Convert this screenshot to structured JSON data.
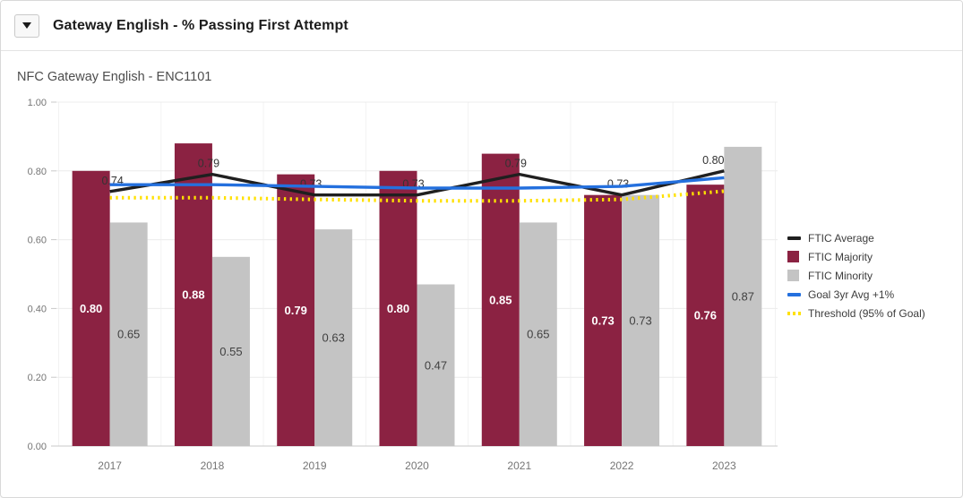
{
  "header": {
    "title": "Gateway English - % Passing First Attempt"
  },
  "chart_data": {
    "type": "bar",
    "title": "NFC Gateway English - ENC1101",
    "categories": [
      "2017",
      "2018",
      "2019",
      "2020",
      "2021",
      "2022",
      "2023"
    ],
    "series": [
      {
        "name": "FTIC Majority",
        "type": "bar",
        "color": "#8B2242",
        "label_color": "#ffffff",
        "label_bold": true,
        "values": [
          0.8,
          0.88,
          0.79,
          0.8,
          0.85,
          0.73,
          0.76
        ]
      },
      {
        "name": "FTIC Minority",
        "type": "bar",
        "color": "#C4C4C4",
        "label_color": "#404040",
        "label_bold": false,
        "values": [
          0.65,
          0.55,
          0.63,
          0.47,
          0.65,
          0.73,
          0.87
        ]
      },
      {
        "name": "FTIC Average",
        "type": "line",
        "style": "solid",
        "color": "#1F1F1F",
        "show_labels": true,
        "values": [
          0.74,
          0.79,
          0.73,
          0.73,
          0.79,
          0.73,
          0.8
        ]
      },
      {
        "name": "Goal 3yr Avg +1%",
        "type": "line",
        "style": "solid",
        "color": "#2470DE",
        "show_labels": false,
        "values": [
          0.76,
          0.76,
          0.755,
          0.75,
          0.75,
          0.755,
          0.78
        ]
      },
      {
        "name": "Threshold (95% of Goal)",
        "type": "line",
        "style": "dotted",
        "color": "#FFE100",
        "show_labels": false,
        "values": [
          0.722,
          0.722,
          0.717,
          0.713,
          0.713,
          0.717,
          0.741
        ]
      }
    ],
    "legend": [
      "FTIC Average",
      "FTIC Majority",
      "FTIC Minority",
      "Goal 3yr Avg +1%",
      "Threshold (95% of Goal)"
    ],
    "legend_position": "right",
    "ylim": [
      0,
      1
    ],
    "yticks": [
      0.0,
      0.2,
      0.4,
      0.6,
      0.8,
      1.0
    ],
    "grid": true,
    "value_format": "0.00",
    "colors": {
      "grid_line": "#ececec",
      "grid_separator": "#f2f2f2",
      "axis_line": "#c9c9c9",
      "tick_label": "#757575",
      "line_label": "#333333"
    }
  }
}
